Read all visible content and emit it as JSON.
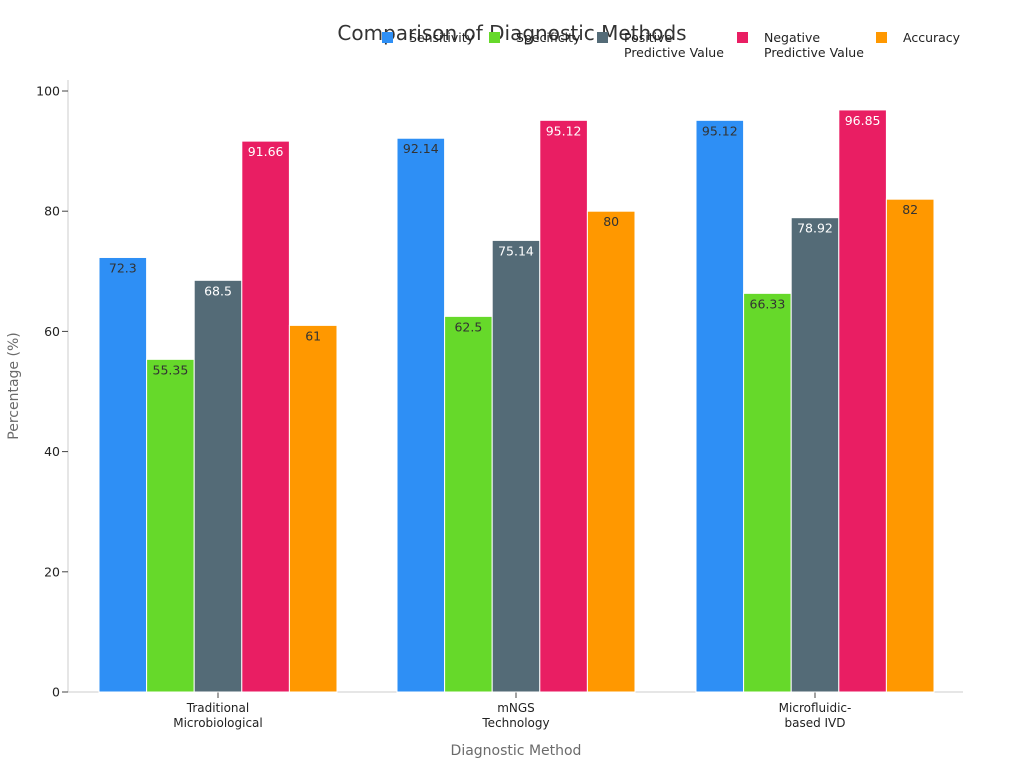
{
  "chart_data": {
    "type": "bar",
    "title": "Comparison of Diagnostic Methods",
    "xlabel": "Diagnostic Method",
    "ylabel": "Percentage (%)",
    "ylim": [
      0,
      100
    ],
    "yticks": [
      0,
      20,
      40,
      60,
      80,
      100
    ],
    "legend_position": "top-right",
    "categories": [
      [
        "Traditional",
        "Microbiological"
      ],
      [
        "mNGS",
        "Technology"
      ],
      [
        "Microfluidic-",
        "based IVD"
      ]
    ],
    "series": [
      {
        "name": [
          "Sensitivity"
        ],
        "color": "#2e8ff5",
        "label_color": "#333333",
        "values": [
          72.3,
          92.14,
          95.12
        ]
      },
      {
        "name": [
          "Specificity"
        ],
        "color": "#66d92a",
        "label_color": "#333333",
        "values": [
          55.35,
          62.5,
          66.33
        ]
      },
      {
        "name": [
          "Positive",
          "Predictive Value"
        ],
        "color": "#546b77",
        "label_color": "#ffffff",
        "values": [
          68.5,
          75.14,
          78.92
        ]
      },
      {
        "name": [
          "Negative",
          "Predictive Value"
        ],
        "color": "#e91e63",
        "label_color": "#ffffff",
        "values": [
          91.66,
          95.12,
          96.85
        ]
      },
      {
        "name": [
          "Accuracy"
        ],
        "color": "#ff9800",
        "label_color": "#333333",
        "values": [
          61,
          80,
          82
        ]
      }
    ]
  }
}
